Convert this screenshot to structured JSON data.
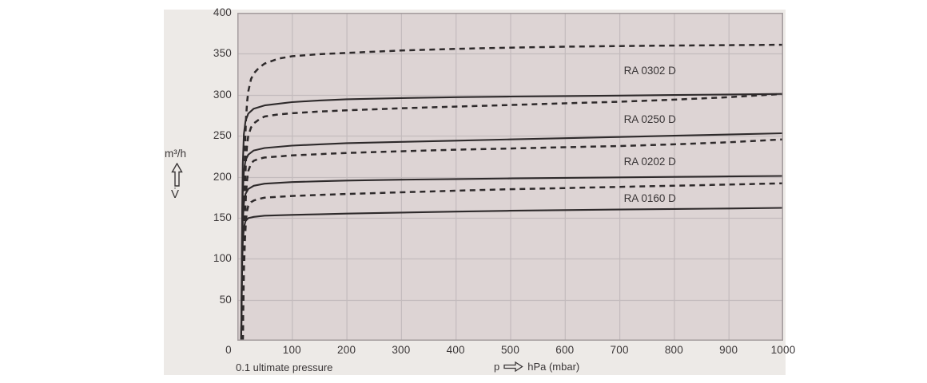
{
  "texts": {
    "y_unit": "m³/h",
    "y_symbol": "V̇",
    "x_prefix": "p",
    "x_unit": "hPa (mbar)",
    "x_note": "0.1 ultimate pressure"
  },
  "colors": {
    "page_bg": "#ffffff",
    "figure_bg": "#edeae7",
    "plot_bg": "#ddd4d4",
    "grid": "#c3bbbd",
    "plot_border": "#a39b9d",
    "curve": "#2e2a2b",
    "text": "#3a3637"
  },
  "chart_data": {
    "type": "line",
    "title": "",
    "xlabel": "p (hPa, mbar)",
    "ylabel": "V̇ (m³/h)",
    "xlim": [
      0,
      1000
    ],
    "ylim": [
      0,
      400
    ],
    "grid": true,
    "x_ticks": [
      0,
      100,
      200,
      300,
      400,
      500,
      600,
      700,
      800,
      900,
      1000
    ],
    "y_ticks": [
      50,
      100,
      150,
      200,
      250,
      300,
      350,
      400
    ],
    "legend_position": "inline-labels",
    "pumps": [
      {
        "model": "RA 0302 D",
        "solid": [
          [
            7,
            0
          ],
          [
            8,
            80
          ],
          [
            9,
            160
          ],
          [
            10,
            215
          ],
          [
            12,
            252
          ],
          [
            15,
            268
          ],
          [
            20,
            277
          ],
          [
            30,
            283
          ],
          [
            50,
            287
          ],
          [
            100,
            291
          ],
          [
            150,
            293
          ],
          [
            200,
            294.5
          ],
          [
            300,
            296
          ],
          [
            400,
            297
          ],
          [
            500,
            297.8
          ],
          [
            600,
            298.4
          ],
          [
            700,
            299
          ],
          [
            800,
            299.7
          ],
          [
            900,
            300.3
          ],
          [
            1000,
            301
          ]
        ],
        "dashed": [
          [
            10,
            0
          ],
          [
            11,
            90
          ],
          [
            12,
            160
          ],
          [
            14,
            235
          ],
          [
            16,
            272
          ],
          [
            18,
            292
          ],
          [
            20,
            304
          ],
          [
            25,
            319
          ],
          [
            30,
            326
          ],
          [
            40,
            333
          ],
          [
            50,
            338
          ],
          [
            75,
            344
          ],
          [
            100,
            347
          ],
          [
            150,
            349.5
          ],
          [
            200,
            351
          ],
          [
            300,
            354
          ],
          [
            400,
            356
          ],
          [
            500,
            357.5
          ],
          [
            600,
            358.6
          ],
          [
            700,
            359.4
          ],
          [
            800,
            360
          ],
          [
            900,
            360.5
          ],
          [
            1000,
            361
          ]
        ]
      },
      {
        "model": "RA 0250 D",
        "solid": [
          [
            7,
            0
          ],
          [
            8,
            70
          ],
          [
            9,
            140
          ],
          [
            10,
            180
          ],
          [
            12,
            207
          ],
          [
            15,
            220
          ],
          [
            20,
            227
          ],
          [
            30,
            232
          ],
          [
            50,
            235
          ],
          [
            100,
            238
          ],
          [
            150,
            239.5
          ],
          [
            200,
            241
          ],
          [
            300,
            242.5
          ],
          [
            400,
            244
          ],
          [
            500,
            245.5
          ],
          [
            600,
            247
          ],
          [
            700,
            248.5
          ],
          [
            800,
            250
          ],
          [
            900,
            251.5
          ],
          [
            1000,
            253
          ]
        ],
        "dashed": [
          [
            10,
            0
          ],
          [
            11,
            70
          ],
          [
            12,
            130
          ],
          [
            14,
            190
          ],
          [
            16,
            222
          ],
          [
            18,
            240
          ],
          [
            20,
            250
          ],
          [
            25,
            260
          ],
          [
            30,
            265
          ],
          [
            40,
            270
          ],
          [
            50,
            273.5
          ],
          [
            75,
            276
          ],
          [
            100,
            277.5
          ],
          [
            150,
            279.5
          ],
          [
            200,
            281
          ],
          [
            300,
            283.5
          ],
          [
            400,
            285.5
          ],
          [
            500,
            287.5
          ],
          [
            600,
            289.5
          ],
          [
            700,
            291.5
          ],
          [
            800,
            294
          ],
          [
            900,
            297
          ],
          [
            1000,
            301
          ]
        ]
      },
      {
        "model": "RA 0202 D",
        "solid": [
          [
            7,
            0
          ],
          [
            8,
            60
          ],
          [
            9,
            115
          ],
          [
            10,
            145
          ],
          [
            12,
            168
          ],
          [
            15,
            179
          ],
          [
            20,
            185
          ],
          [
            30,
            189
          ],
          [
            50,
            191.5
          ],
          [
            100,
            193.5
          ],
          [
            150,
            194.5
          ],
          [
            200,
            195.3
          ],
          [
            300,
            196.4
          ],
          [
            400,
            197.2
          ],
          [
            500,
            198
          ],
          [
            600,
            198.6
          ],
          [
            700,
            199.2
          ],
          [
            800,
            199.8
          ],
          [
            900,
            200.4
          ],
          [
            1000,
            201
          ]
        ],
        "dashed": [
          [
            10,
            0
          ],
          [
            11,
            55
          ],
          [
            12,
            100
          ],
          [
            14,
            150
          ],
          [
            16,
            180
          ],
          [
            18,
            197
          ],
          [
            20,
            207
          ],
          [
            25,
            216
          ],
          [
            30,
            219.5
          ],
          [
            40,
            222
          ],
          [
            50,
            223.5
          ],
          [
            100,
            226
          ],
          [
            150,
            227.5
          ],
          [
            200,
            229
          ],
          [
            300,
            231
          ],
          [
            400,
            233
          ],
          [
            500,
            234.5
          ],
          [
            600,
            236
          ],
          [
            700,
            237.5
          ],
          [
            800,
            239.5
          ],
          [
            900,
            242
          ],
          [
            1000,
            245.5
          ]
        ]
      },
      {
        "model": "RA 0160 D",
        "solid": [
          [
            7,
            0
          ],
          [
            8,
            50
          ],
          [
            9,
            95
          ],
          [
            10,
            120
          ],
          [
            12,
            138
          ],
          [
            15,
            146
          ],
          [
            20,
            149.5
          ],
          [
            30,
            151
          ],
          [
            50,
            152.5
          ],
          [
            100,
            153.5
          ],
          [
            150,
            154.2
          ],
          [
            200,
            155
          ],
          [
            300,
            156.3
          ],
          [
            400,
            157.5
          ],
          [
            500,
            158.5
          ],
          [
            600,
            159.3
          ],
          [
            700,
            160
          ],
          [
            800,
            160.7
          ],
          [
            900,
            161.3
          ],
          [
            1000,
            162
          ]
        ],
        "dashed": [
          [
            10,
            0
          ],
          [
            11,
            45
          ],
          [
            12,
            85
          ],
          [
            14,
            125
          ],
          [
            16,
            148
          ],
          [
            18,
            159
          ],
          [
            20,
            164.5
          ],
          [
            25,
            169
          ],
          [
            30,
            171
          ],
          [
            40,
            173
          ],
          [
            50,
            174.5
          ],
          [
            100,
            176.5
          ],
          [
            150,
            177.8
          ],
          [
            200,
            179
          ],
          [
            300,
            181
          ],
          [
            400,
            183
          ],
          [
            500,
            184.8
          ],
          [
            600,
            186.2
          ],
          [
            700,
            187.6
          ],
          [
            800,
            189
          ],
          [
            900,
            190.5
          ],
          [
            1000,
            192
          ]
        ]
      }
    ]
  }
}
